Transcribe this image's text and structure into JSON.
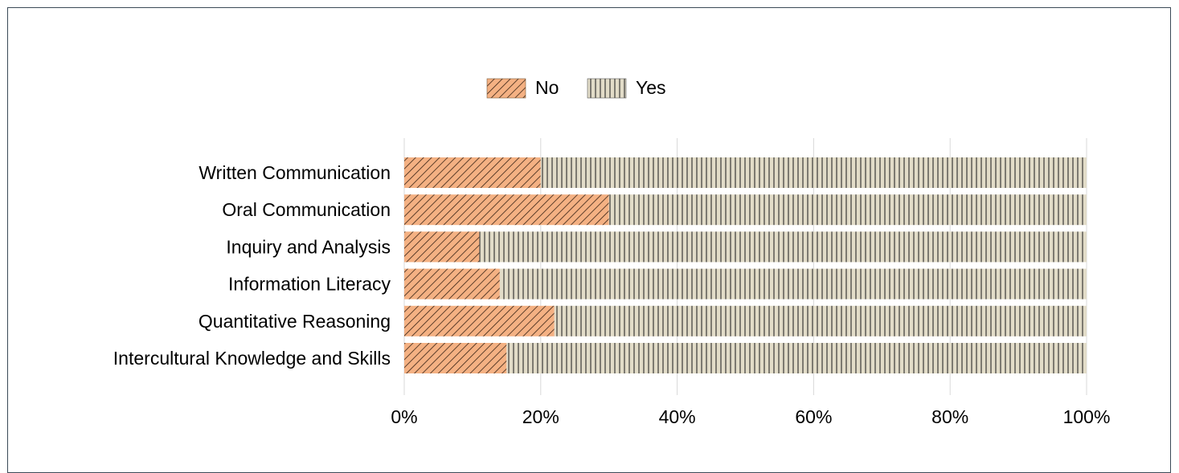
{
  "chart_data": {
    "type": "bar",
    "orientation": "horizontal",
    "stacked": "percent",
    "categories": [
      "Written Communication",
      "Oral Communication",
      "Inquiry and Analysis",
      "Information Literacy",
      "Quantitative Reasoning",
      "Intercultural Knowledge and Skills"
    ],
    "series": [
      {
        "name": "No",
        "values": [
          20,
          30,
          11,
          14,
          22,
          15
        ],
        "color": "#f4b183",
        "pattern": "diagonal-hatch"
      },
      {
        "name": "Yes",
        "values": [
          80,
          70,
          89,
          86,
          78,
          85
        ],
        "color": "#e2dcc8",
        "pattern": "vertical-lines"
      }
    ],
    "xlim": [
      0,
      100
    ],
    "xticks": [
      "0%",
      "20%",
      "40%",
      "60%",
      "80%",
      "100%"
    ],
    "legend_position": "top-center",
    "grid": true
  }
}
